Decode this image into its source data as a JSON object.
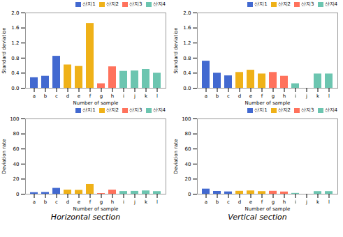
{
  "chart_data": [
    {
      "type": "bar",
      "categories": [
        "a",
        "b",
        "c",
        "d",
        "e",
        "f",
        "g",
        "h",
        "i",
        "j",
        "k",
        "l"
      ],
      "series": [
        {
          "name": "산지1",
          "values": [
            0.28,
            0.32,
            0.85,
            0.0,
            0.0,
            0.0,
            0.0,
            0.0,
            0.0,
            0.0,
            0.0,
            0.0
          ]
        },
        {
          "name": "산지2",
          "values": [
            0.0,
            0.0,
            0.0,
            0.62,
            0.58,
            1.72,
            0.0,
            0.0,
            0.0,
            0.0,
            0.0,
            0.0
          ]
        },
        {
          "name": "산지3",
          "values": [
            0.0,
            0.0,
            0.0,
            0.0,
            0.0,
            0.0,
            0.12,
            0.57,
            0.0,
            0.0,
            0.0,
            0.0
          ]
        },
        {
          "name": "산지4",
          "values": [
            0.0,
            0.0,
            0.0,
            0.0,
            0.0,
            0.0,
            0.0,
            0.0,
            0.45,
            0.46,
            0.5,
            0.4
          ]
        }
      ],
      "xlabel": "Number of sample",
      "ylabel": "Standard deviation",
      "ylim": [
        0.0,
        2.0
      ],
      "yticks": [
        {
          "value": 0.0,
          "label": "0.0"
        },
        0.4,
        0.8,
        1.2,
        1.6,
        {
          "value": 2.0,
          "label": "2.0"
        }
      ],
      "legend": "upper right",
      "grid": false
    },
    {
      "type": "bar",
      "categories": [
        "a",
        "b",
        "c",
        "d",
        "e",
        "f",
        "g",
        "h",
        "i",
        "j",
        "k",
        "l"
      ],
      "series": [
        {
          "name": "산지1",
          "values": [
            0.72,
            0.4,
            0.33,
            0.0,
            0.0,
            0.0,
            0.0,
            0.0,
            0.0,
            0.0,
            0.0,
            0.0
          ]
        },
        {
          "name": "산지2",
          "values": [
            0.0,
            0.0,
            0.0,
            0.42,
            0.48,
            0.38,
            0.0,
            0.0,
            0.0,
            0.0,
            0.0,
            0.0
          ]
        },
        {
          "name": "산지3",
          "values": [
            0.0,
            0.0,
            0.0,
            0.0,
            0.0,
            0.0,
            0.42,
            0.32,
            0.0,
            0.0,
            0.0,
            0.0
          ]
        },
        {
          "name": "산지4",
          "values": [
            0.0,
            0.0,
            0.0,
            0.0,
            0.0,
            0.0,
            0.0,
            0.0,
            0.12,
            0.0,
            0.38,
            0.38
          ]
        }
      ],
      "xlabel": "Number of sample",
      "ylabel": "Standard deviation",
      "ylim": [
        0.0,
        2.0
      ],
      "yticks": [
        {
          "value": 0.0,
          "label": "0.0"
        },
        0.4,
        0.8,
        1.2,
        1.6,
        {
          "value": 2.0,
          "label": "2.0"
        }
      ],
      "legend": "upper right",
      "grid": false
    },
    {
      "type": "bar",
      "categories": [
        "a",
        "b",
        "c",
        "d",
        "e",
        "f",
        "g",
        "h",
        "i",
        "j",
        "k",
        "l"
      ],
      "series": [
        {
          "name": "산지1",
          "values": [
            2.1,
            2.4,
            7.8,
            0.0,
            0.0,
            0.0,
            0.0,
            0.0,
            0.0,
            0.0,
            0.0,
            0.0
          ]
        },
        {
          "name": "산지2",
          "values": [
            0.0,
            0.0,
            0.0,
            5.5,
            5.2,
            13.0,
            0.0,
            0.0,
            0.0,
            0.0,
            0.0,
            0.0
          ]
        },
        {
          "name": "산지3",
          "values": [
            0.0,
            0.0,
            0.0,
            0.0,
            0.0,
            0.0,
            0.9,
            5.5,
            0.0,
            0.0,
            0.0,
            0.0
          ]
        },
        {
          "name": "산지4",
          "values": [
            0.0,
            0.0,
            0.0,
            0.0,
            0.0,
            0.0,
            0.0,
            0.0,
            3.6,
            3.8,
            4.4,
            3.5
          ]
        }
      ],
      "xlabel": "Number of sample",
      "ylabel": "Deviation rate",
      "ylim": [
        0,
        100
      ],
      "yticks": [
        0,
        20,
        40,
        60,
        80,
        100
      ],
      "legend": "upper right",
      "grid": false,
      "annotations": [
        "Horizontal section"
      ]
    },
    {
      "type": "bar",
      "categories": [
        "a",
        "b",
        "c",
        "d",
        "e",
        "f",
        "g",
        "h",
        "i",
        "j",
        "k",
        "l"
      ],
      "series": [
        {
          "name": "산지1",
          "values": [
            6.8,
            3.7,
            3.1,
            0.0,
            0.0,
            0.0,
            0.0,
            0.0,
            0.0,
            0.0,
            0.0,
            0.0
          ]
        },
        {
          "name": "산지2",
          "values": [
            0.0,
            0.0,
            0.0,
            3.9,
            4.4,
            3.5,
            0.0,
            0.0,
            0.0,
            0.0,
            0.0,
            0.0
          ]
        },
        {
          "name": "산지3",
          "values": [
            0.0,
            0.0,
            0.0,
            0.0,
            0.0,
            0.0,
            3.9,
            3.0,
            0.0,
            0.0,
            0.0,
            0.0
          ]
        },
        {
          "name": "산지4",
          "values": [
            0.0,
            0.0,
            0.0,
            0.0,
            0.0,
            0.0,
            0.0,
            0.0,
            1.1,
            0.0,
            3.5,
            3.5
          ]
        }
      ],
      "xlabel": "Number of sample",
      "ylabel": "Deviation rate",
      "ylim": [
        0,
        100
      ],
      "yticks": [
        0,
        20,
        40,
        60,
        80,
        100
      ],
      "legend": "upper right",
      "grid": false,
      "annotations": [
        "Vertical section"
      ]
    }
  ]
}
